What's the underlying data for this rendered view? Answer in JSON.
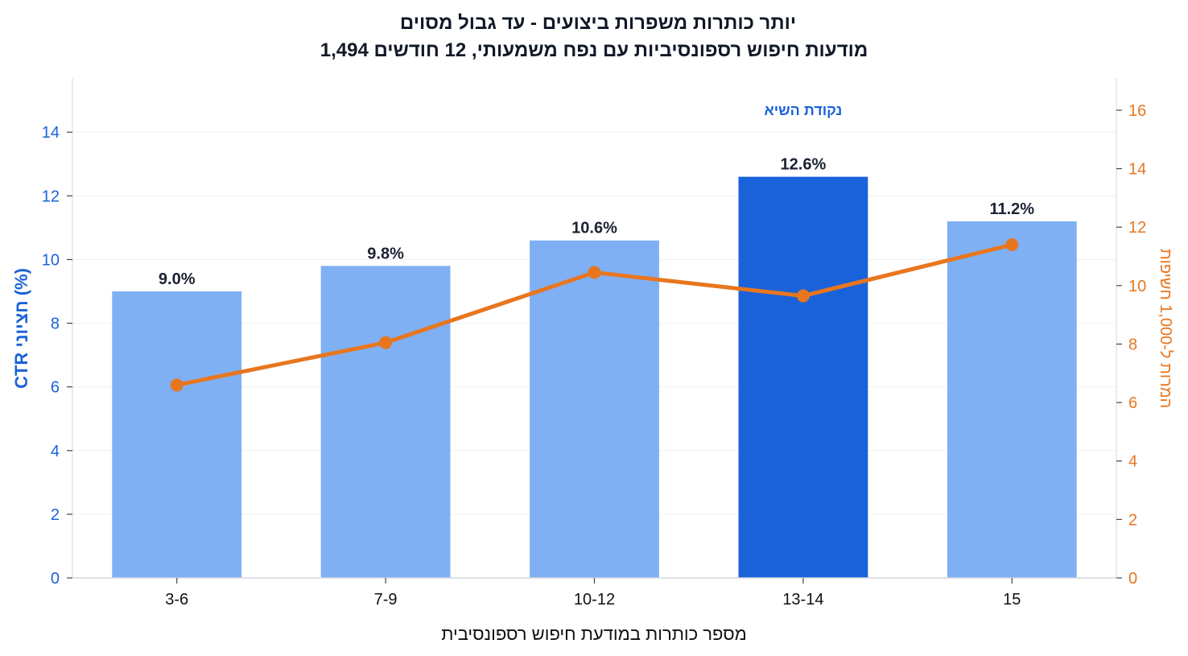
{
  "chart_data": {
    "type": "bar",
    "title": "יותר כותרות משפרות ביצועים - עד גבול מסוים",
    "subtitle": "1,494 מודעות חיפוש רספונסיביות עם נפח משמעותי, 12 חודשים",
    "xlabel": "מספר כותרות במודעת חיפוש רספונסיבית",
    "ylabel": "CTR חציוני (%)",
    "ylabel_right": "המרות ל-1,000 חשיפות",
    "categories": [
      "3-6",
      "7-9",
      "10-12",
      "13-14",
      "15"
    ],
    "ylim": [
      0,
      15.7
    ],
    "yticks": [
      0,
      2,
      4,
      6,
      8,
      10,
      12,
      14
    ],
    "ylim_right": [
      0,
      17.1
    ],
    "yticks_right": [
      0,
      2,
      4,
      6,
      8,
      10,
      12,
      14,
      16
    ],
    "grid": true,
    "series": [
      {
        "type": "bar",
        "axis": "left",
        "values": [
          9.0,
          9.8,
          10.6,
          12.6,
          11.2
        ],
        "labels": [
          "9.0%",
          "9.8%",
          "10.6%",
          "12.6%",
          "11.2%"
        ],
        "color": "#7fb0f4",
        "highlight_index": 3,
        "highlight_color": "#1a62d9"
      },
      {
        "type": "line",
        "axis": "right",
        "values": [
          6.6,
          8.05,
          10.45,
          9.65,
          11.4
        ],
        "color": "#e8761f"
      }
    ],
    "annotations": [
      {
        "text": "נקודת השיא",
        "category": "13-14",
        "color": "#1a62d9"
      }
    ]
  }
}
